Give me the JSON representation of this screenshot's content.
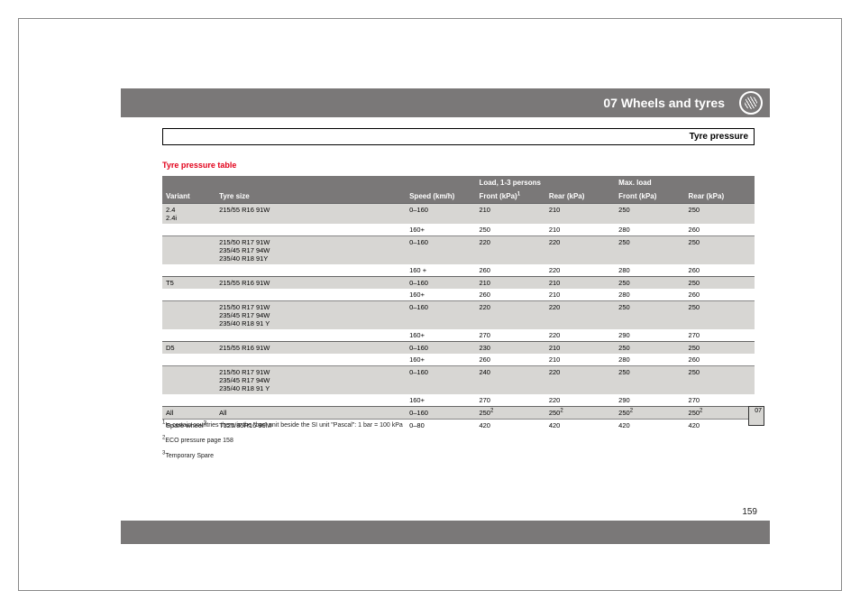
{
  "header": {
    "title": "07 Wheels and tyres"
  },
  "subhead": "Tyre pressure",
  "section_heading": "Tyre pressure table",
  "thumb_tab": "07",
  "page_number": "159",
  "columns": {
    "variant": "Variant",
    "tyre_size": "Tyre size",
    "speed": "Speed (km/h)",
    "load_span": "Load, 1-3 persons",
    "front_load": "Front (kPa)",
    "rear_load": "Rear (kPa)",
    "max_span": "Max. load",
    "front_max": "Front (kPa)",
    "rear_max": "Rear (kPa)",
    "front_sup": "1"
  },
  "rows": [
    {
      "sep": "group",
      "shade": "light",
      "variant": "2.4\n2.4i",
      "tyre": "215/55 R16 91W",
      "speed": "0–160",
      "fl": "210",
      "rl": "210",
      "fm": "250",
      "rm": "250"
    },
    {
      "shade": "white",
      "variant": "",
      "tyre": "",
      "speed": "160+",
      "fl": "250",
      "rl": "210",
      "fm": "280",
      "rm": "260"
    },
    {
      "sep": "hair",
      "shade": "light",
      "variant": "",
      "tyre": "215/50 R17 91W\n235/45 R17 94W\n235/40 R18 91Y",
      "speed": "0–160",
      "fl": "220",
      "rl": "220",
      "fm": "250",
      "rm": "250"
    },
    {
      "shade": "white",
      "variant": "",
      "tyre": "",
      "speed": "160 +",
      "fl": "260",
      "rl": "220",
      "fm": "280",
      "rm": "260"
    },
    {
      "sep": "group",
      "shade": "light",
      "variant": "T5",
      "tyre": "215/55 R16 91W",
      "speed": "0–160",
      "fl": "210",
      "rl": "210",
      "fm": "250",
      "rm": "250"
    },
    {
      "shade": "white",
      "variant": "",
      "tyre": "",
      "speed": "160+",
      "fl": "260",
      "rl": "210",
      "fm": "280",
      "rm": "260"
    },
    {
      "sep": "hair",
      "shade": "light",
      "variant": "",
      "tyre": "215/50 R17 91W\n235/45 R17 94W\n235/40 R18 91 Y",
      "speed": "0–160",
      "fl": "220",
      "rl": "220",
      "fm": "250",
      "rm": "250"
    },
    {
      "shade": "white",
      "variant": "",
      "tyre": "",
      "speed": "160+",
      "fl": "270",
      "rl": "220",
      "fm": "290",
      "rm": "270"
    },
    {
      "sep": "group",
      "shade": "light",
      "variant": "D5",
      "tyre": "215/55 R16 91W",
      "speed": "0–160",
      "fl": "230",
      "rl": "210",
      "fm": "250",
      "rm": "250"
    },
    {
      "shade": "white",
      "variant": "",
      "tyre": "",
      "speed": "160+",
      "fl": "260",
      "rl": "210",
      "fm": "280",
      "rm": "260"
    },
    {
      "sep": "hair",
      "shade": "light",
      "variant": "",
      "tyre": "215/50 R17 91W\n235/45 R17 94W\n235/40 R18 91 Y",
      "speed": "0–160",
      "fl": "240",
      "rl": "220",
      "fm": "250",
      "rm": "250"
    },
    {
      "shade": "white",
      "variant": "",
      "tyre": "",
      "speed": "160+",
      "fl": "270",
      "rl": "220",
      "fm": "290",
      "rm": "270"
    },
    {
      "sep": "group",
      "shade": "light",
      "variant": "All",
      "tyre": "All",
      "speed": "0–160",
      "fl": "250",
      "fl_sup": "2",
      "rl": "250",
      "rl_sup": "2",
      "fm": "250",
      "fm_sup": "2",
      "rm": "250",
      "rm_sup": "2"
    },
    {
      "sep": "hair",
      "shade": "white",
      "variant": "Spare wheel",
      "variant_sup": "3",
      "tyre": "T125/85R16 99M",
      "speed": "0–80",
      "fl": "420",
      "rl": "420",
      "fm": "420",
      "rm": "420"
    }
  ],
  "footnotes": [
    {
      "sup": "1",
      "text": "In certain countries there is the \"bar\" unit beside the SI unit \"Pascal\": 1 bar = 100 kPa"
    },
    {
      "sup": "2",
      "text": "ECO pressure page 158"
    },
    {
      "sup": "3",
      "text": "Temporary Spare"
    }
  ],
  "colors": {
    "band": "#7a7878",
    "row_light": "#d7d6d3",
    "accent": "#e2001a"
  }
}
